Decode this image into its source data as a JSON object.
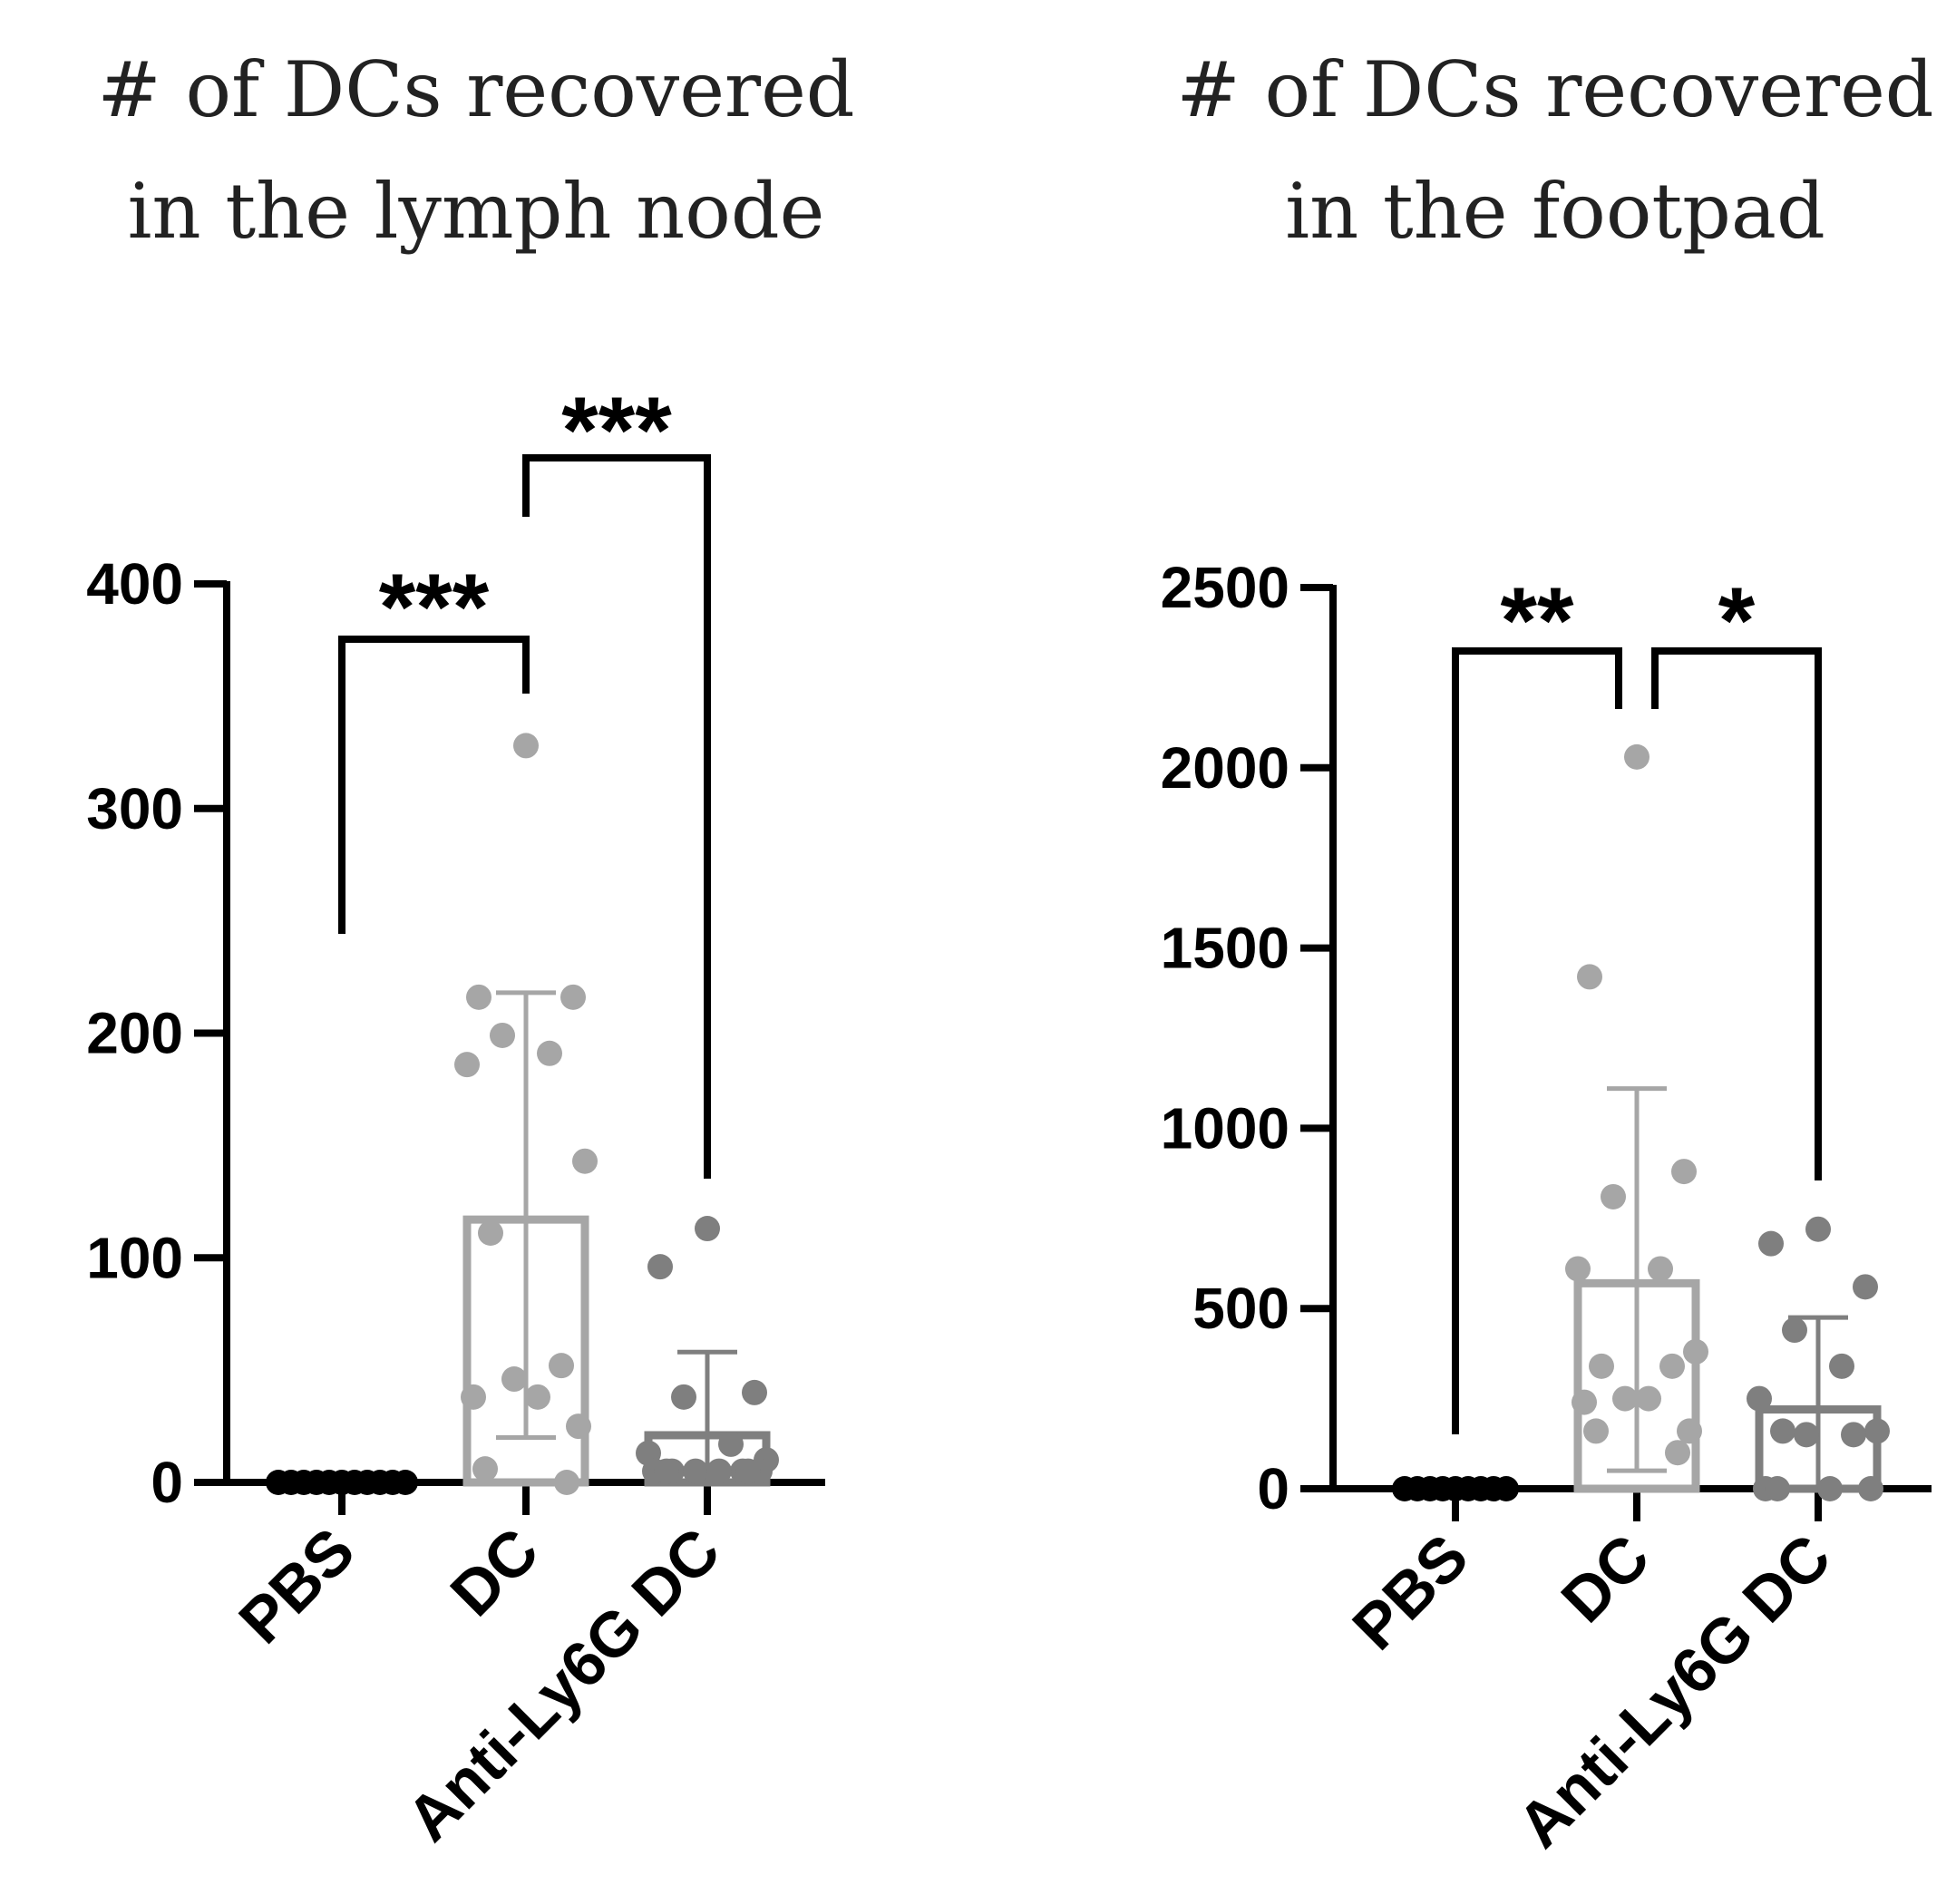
{
  "chart_data": [
    {
      "type": "bar",
      "title_lines": [
        "# of DCs recovered",
        "in the lymph node"
      ],
      "categories": [
        "PBS",
        "DC",
        "Anti-Ly6G DC"
      ],
      "ylim": [
        0,
        400
      ],
      "yticks": [
        "0",
        "100",
        "200",
        "300",
        "400"
      ],
      "bar_means": [
        0,
        117,
        21
      ],
      "error_bars": [
        {
          "low": 0,
          "high": 0
        },
        {
          "low": 20,
          "high": 218
        },
        {
          "low": 0,
          "high": 58
        }
      ],
      "points": [
        [
          0,
          0,
          0,
          0,
          0,
          0,
          0,
          0,
          0,
          0,
          0
        ],
        [
          328,
          216,
          216,
          199,
          191,
          186,
          143,
          111,
          52,
          46,
          38,
          38,
          25,
          6,
          0
        ],
        [
          113,
          96,
          40,
          38,
          17,
          13,
          10,
          5,
          5,
          5,
          5,
          5,
          5,
          5,
          5
        ]
      ],
      "comparisons": [
        {
          "from": "PBS",
          "to": "DC",
          "label": "***"
        },
        {
          "from": "DC",
          "to": "Anti-Ly6G DC",
          "label": "***"
        }
      ],
      "colors": {
        "PBS": "#000000",
        "DC": "#a6a6a6",
        "Anti-Ly6G DC": "#7f7f7f"
      }
    },
    {
      "type": "bar",
      "title_lines": [
        "# of DCs recovered",
        "in the footpad"
      ],
      "categories": [
        "PBS",
        "DC",
        "Anti-Ly6G DC"
      ],
      "ylim": [
        0,
        2500
      ],
      "yticks": [
        "0",
        "500",
        "1000",
        "1500",
        "2000",
        "2500"
      ],
      "bar_means": [
        0,
        570,
        220
      ],
      "error_bars": [
        {
          "low": 0,
          "high": 0
        },
        {
          "low": 50,
          "high": 1110
        },
        {
          "low": 0,
          "high": 475
        }
      ],
      "points": [
        [
          0,
          0,
          0,
          0,
          0,
          0,
          0,
          0,
          0
        ],
        [
          2030,
          1420,
          880,
          810,
          610,
          610,
          380,
          340,
          340,
          250,
          250,
          240,
          160,
          160,
          100
        ],
        [
          720,
          680,
          560,
          440,
          340,
          250,
          160,
          160,
          150,
          150,
          0,
          0,
          0,
          0
        ]
      ],
      "comparisons": [
        {
          "from": "PBS",
          "to": "DC",
          "label": "**"
        },
        {
          "from": "DC",
          "to": "Anti-Ly6G DC",
          "label": "*"
        }
      ],
      "colors": {
        "PBS": "#000000",
        "DC": "#a6a6a6",
        "Anti-Ly6G DC": "#7f7f7f"
      }
    }
  ]
}
